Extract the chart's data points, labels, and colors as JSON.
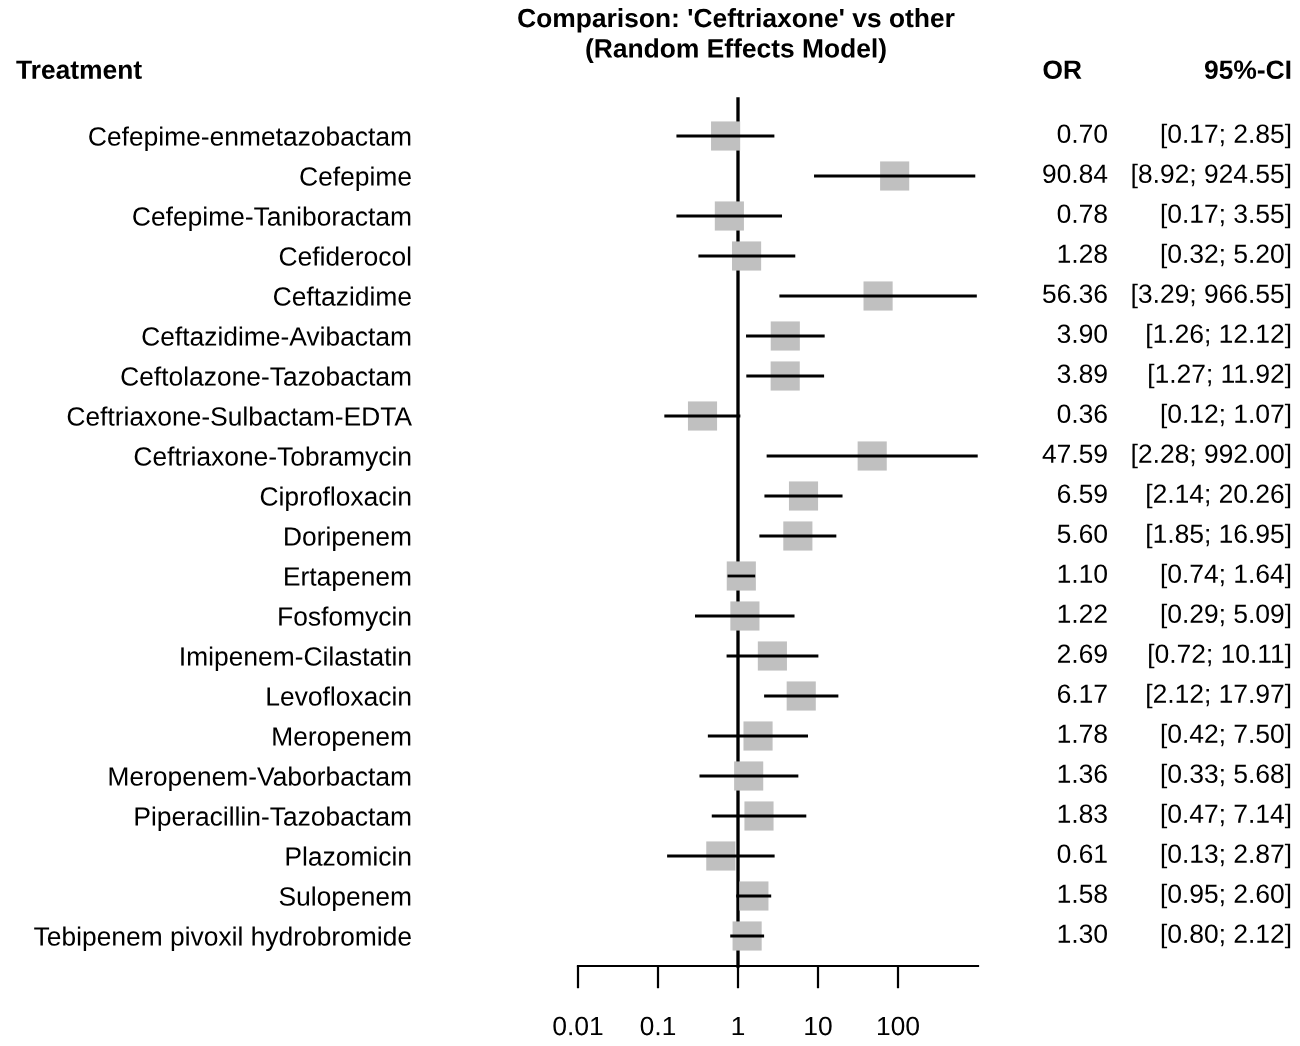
{
  "chart_data": {
    "type": "scatter",
    "orientation": "horizontal",
    "title": "Comparison: 'Ceftriaxone' vs other\n(Random Effects Model)",
    "categories": [
      "Cefepime-enmetazobactam",
      "Cefepime",
      "Cefepime-Taniboractam",
      "Cefiderocol",
      "Ceftazidime",
      "Ceftazidime-Avibactam",
      "Ceftolazone-Tazobactam",
      "Ceftriaxone-Sulbactam-EDTA",
      "Ceftriaxone-Tobramycin",
      "Ciprofloxacin",
      "Doripenem",
      "Ertapenem",
      "Fosfomycin",
      "Imipenem-Cilastatin",
      "Levofloxacin",
      "Meropenem",
      "Meropenem-Vaborbactam",
      "Piperacillin-Tazobactam",
      "Plazomicin",
      "Sulopenem",
      "Tebipenem pivoxil hydrobromide"
    ],
    "values": [
      0.7,
      90.84,
      0.78,
      1.28,
      56.36,
      3.9,
      3.89,
      0.36,
      47.59,
      6.59,
      5.6,
      1.1,
      1.22,
      2.69,
      6.17,
      1.78,
      1.36,
      1.83,
      0.61,
      1.58,
      1.3
    ],
    "errors": [
      [
        0.17,
        2.85
      ],
      [
        8.92,
        924.55
      ],
      [
        0.17,
        3.55
      ],
      [
        0.32,
        5.2
      ],
      [
        3.29,
        966.55
      ],
      [
        1.26,
        12.12
      ],
      [
        1.27,
        11.92
      ],
      [
        0.12,
        1.07
      ],
      [
        2.28,
        992.0
      ],
      [
        2.14,
        20.26
      ],
      [
        1.85,
        16.95
      ],
      [
        0.74,
        1.64
      ],
      [
        0.29,
        5.09
      ],
      [
        0.72,
        10.11
      ],
      [
        2.12,
        17.97
      ],
      [
        0.42,
        7.5
      ],
      [
        0.33,
        5.68
      ],
      [
        0.47,
        7.14
      ],
      [
        0.13,
        2.87
      ],
      [
        0.95,
        2.6
      ],
      [
        0.8,
        2.12
      ]
    ],
    "value_labels": [
      "0.70",
      "90.84",
      "0.78",
      "1.28",
      "56.36",
      "3.90",
      "3.89",
      "0.36",
      "47.59",
      "6.59",
      "5.60",
      "1.10",
      "1.22",
      "2.69",
      "6.17",
      "1.78",
      "1.36",
      "1.83",
      "0.61",
      "1.58",
      "1.30"
    ],
    "color": "#c0c0c0",
    "marker": "square",
    "log": "x",
    "xlim": [
      0.01,
      1000
    ],
    "xticks": [
      0.01,
      0.1,
      1,
      10,
      100
    ],
    "ref_lines": [
      {
        "axis": "x",
        "value": 1,
        "color": "#000000"
      }
    ],
    "annotations": [
      "Treatment",
      "OR",
      "95%-CI",
      "[0.17; 2.85]",
      "[8.92; 924.55]",
      "[0.17; 3.55]",
      "[0.32; 5.20]",
      "[3.29; 966.55]",
      "[1.26; 12.12]",
      "[1.27; 11.92]",
      "[0.12; 1.07]",
      "[2.28; 992.00]",
      "[2.14; 20.26]",
      "[1.85; 16.95]",
      "[0.74; 1.64]",
      "[0.29; 5.09]",
      "[0.72; 10.11]",
      "[2.12; 17.97]",
      "[0.42; 7.50]",
      "[0.33; 5.68]",
      "[0.47; 7.14]",
      "[0.13; 2.87]",
      "[0.95; 2.60]",
      "[0.80; 2.12]"
    ]
  }
}
